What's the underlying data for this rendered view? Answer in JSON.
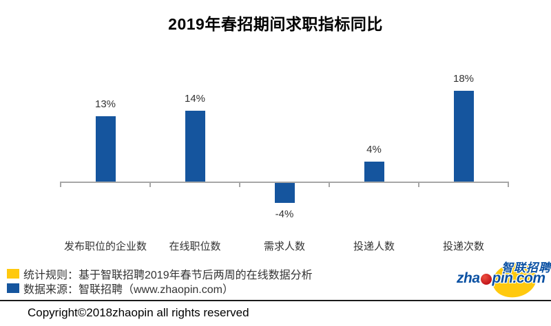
{
  "page": {
    "background": "#FFFFFF"
  },
  "chart_data": {
    "type": "bar",
    "title": "2019年春招期间求职指标同比",
    "categories": [
      "发布职位的企业数",
      "在线职位数",
      "需求人数",
      "投递人数",
      "投递次数"
    ],
    "values": [
      13,
      14,
      -4,
      4,
      18
    ],
    "value_labels": [
      "13%",
      "14%",
      "-4%",
      "4%",
      "18%"
    ],
    "bar_color": "#15559E",
    "axis_color": "#A6A6A6",
    "xlabel": "",
    "ylabel": "",
    "ylim": [
      -8,
      20
    ],
    "grid": false,
    "baseline": 0,
    "legend_position": "bottom-left"
  },
  "legend": {
    "items": [
      {
        "swatch_color": "#FFC90E",
        "label": "统计规则：基于智联招聘2019年春节后两周的在线数据分析"
      },
      {
        "swatch_color": "#15559E",
        "label": "数据来源：智联招聘（www.zhaopin.com）"
      }
    ]
  },
  "footer": {
    "copyright": "Copyright©2018zhaopin all rights reserved"
  },
  "logo": {
    "cn": "智联招聘",
    "en_pre": "zha",
    "en_post": "pin.com",
    "colors": {
      "blue": "#0B51A3",
      "yellow": "#FFC90E",
      "red": "#C3161C",
      "red_light": "#E8483A"
    }
  }
}
